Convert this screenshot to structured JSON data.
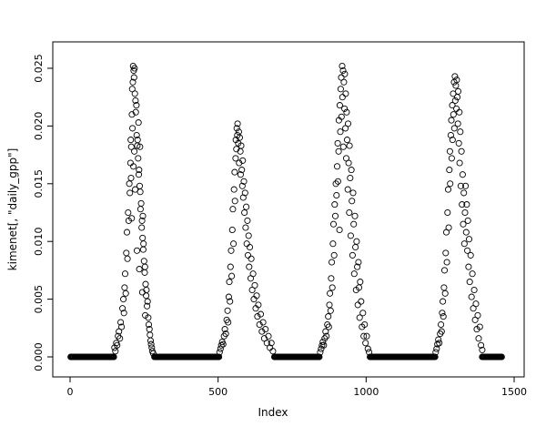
{
  "chart_data": {
    "type": "scatter",
    "title": "",
    "xlabel": "Index",
    "ylabel": "kimenet[, \"daily_gpp\"]",
    "xlim": [
      0,
      1500
    ],
    "ylim": [
      0,
      0.025
    ],
    "x_ticks": [
      0,
      500,
      1000,
      1500
    ],
    "y_ticks": [
      0.0,
      0.005,
      0.01,
      0.015,
      0.02,
      0.025
    ],
    "legend": "none",
    "grid": false,
    "marker": "open-circle",
    "marker_color": "#000000",
    "baseline_value": 0,
    "baseline_segments": [
      {
        "from": 2,
        "to": 148,
        "step": 2
      },
      {
        "from": 285,
        "to": 503,
        "step": 2
      },
      {
        "from": 690,
        "to": 843,
        "step": 2
      },
      {
        "from": 1013,
        "to": 1233,
        "step": 2
      },
      {
        "from": 1392,
        "to": 1458,
        "step": 2
      }
    ],
    "points": [
      [
        150,
        0.0008
      ],
      [
        153,
        0.0005
      ],
      [
        156,
        0.0012
      ],
      [
        159,
        0.001
      ],
      [
        162,
        0.0018
      ],
      [
        165,
        0.0022
      ],
      [
        168,
        0.0016
      ],
      [
        171,
        0.003
      ],
      [
        174,
        0.0026
      ],
      [
        177,
        0.0042
      ],
      [
        180,
        0.005
      ],
      [
        182,
        0.0038
      ],
      [
        184,
        0.006
      ],
      [
        186,
        0.0072
      ],
      [
        188,
        0.0055
      ],
      [
        190,
        0.009
      ],
      [
        192,
        0.0108
      ],
      [
        194,
        0.0085
      ],
      [
        196,
        0.0125
      ],
      [
        198,
        0.0118
      ],
      [
        200,
        0.015
      ],
      [
        202,
        0.0142
      ],
      [
        204,
        0.0168
      ],
      [
        205,
        0.0188
      ],
      [
        206,
        0.0155
      ],
      [
        207,
        0.0182
      ],
      [
        208,
        0.012
      ],
      [
        209,
        0.021
      ],
      [
        210,
        0.0232
      ],
      [
        211,
        0.0198
      ],
      [
        212,
        0.0238
      ],
      [
        213,
        0.0252
      ],
      [
        214,
        0.0165
      ],
      [
        215,
        0.0248
      ],
      [
        216,
        0.0242
      ],
      [
        217,
        0.0178
      ],
      [
        218,
        0.025
      ],
      [
        219,
        0.0228
      ],
      [
        220,
        0.0145
      ],
      [
        221,
        0.0222
      ],
      [
        222,
        0.0212
      ],
      [
        224,
        0.0218
      ],
      [
        225,
        0.0192
      ],
      [
        226,
        0.0092
      ],
      [
        227,
        0.0183
      ],
      [
        228,
        0.0188
      ],
      [
        230,
        0.0172
      ],
      [
        231,
        0.0203
      ],
      [
        232,
        0.0158
      ],
      [
        233,
        0.0162
      ],
      [
        234,
        0.0076
      ],
      [
        235,
        0.0148
      ],
      [
        236,
        0.0182
      ],
      [
        237,
        0.0143
      ],
      [
        238,
        0.0128
      ],
      [
        240,
        0.0133
      ],
      [
        242,
        0.0112
      ],
      [
        243,
        0.0118
      ],
      [
        244,
        0.0056
      ],
      [
        245,
        0.0103
      ],
      [
        246,
        0.0122
      ],
      [
        247,
        0.0093
      ],
      [
        248,
        0.0098
      ],
      [
        250,
        0.0083
      ],
      [
        252,
        0.0073
      ],
      [
        253,
        0.0078
      ],
      [
        254,
        0.0036
      ],
      [
        255,
        0.0063
      ],
      [
        257,
        0.0053
      ],
      [
        258,
        0.0058
      ],
      [
        260,
        0.0044
      ],
      [
        262,
        0.0048
      ],
      [
        264,
        0.0034
      ],
      [
        266,
        0.0028
      ],
      [
        268,
        0.0024
      ],
      [
        270,
        0.0019
      ],
      [
        272,
        0.0014
      ],
      [
        274,
        0.0011
      ],
      [
        276,
        0.0008
      ],
      [
        278,
        0.0005
      ],
      [
        281,
        0.0003
      ],
      [
        505,
        0.0004
      ],
      [
        508,
        0.0007
      ],
      [
        511,
        0.001
      ],
      [
        514,
        0.0013
      ],
      [
        517,
        0.0011
      ],
      [
        520,
        0.0018
      ],
      [
        523,
        0.0024
      ],
      [
        526,
        0.002
      ],
      [
        529,
        0.0032
      ],
      [
        532,
        0.004
      ],
      [
        534,
        0.003
      ],
      [
        536,
        0.0052
      ],
      [
        538,
        0.0065
      ],
      [
        540,
        0.0048
      ],
      [
        542,
        0.0078
      ],
      [
        544,
        0.0092
      ],
      [
        546,
        0.007
      ],
      [
        548,
        0.011
      ],
      [
        550,
        0.0128
      ],
      [
        552,
        0.0098
      ],
      [
        554,
        0.0145
      ],
      [
        556,
        0.016
      ],
      [
        557,
        0.0135
      ],
      [
        559,
        0.0172
      ],
      [
        560,
        0.0188
      ],
      [
        562,
        0.018
      ],
      [
        563,
        0.0198
      ],
      [
        565,
        0.0192
      ],
      [
        566,
        0.0202
      ],
      [
        568,
        0.0185
      ],
      [
        570,
        0.0195
      ],
      [
        571,
        0.0168
      ],
      [
        573,
        0.019
      ],
      [
        575,
        0.0178
      ],
      [
        576,
        0.0158
      ],
      [
        578,
        0.0183
      ],
      [
        580,
        0.0162
      ],
      [
        582,
        0.0148
      ],
      [
        583,
        0.017
      ],
      [
        585,
        0.0138
      ],
      [
        587,
        0.0152
      ],
      [
        589,
        0.0125
      ],
      [
        591,
        0.0142
      ],
      [
        593,
        0.0112
      ],
      [
        595,
        0.013
      ],
      [
        597,
        0.0098
      ],
      [
        599,
        0.0118
      ],
      [
        601,
        0.0088
      ],
      [
        603,
        0.0105
      ],
      [
        605,
        0.0078
      ],
      [
        607,
        0.0095
      ],
      [
        610,
        0.0068
      ],
      [
        612,
        0.0085
      ],
      [
        615,
        0.0058
      ],
      [
        618,
        0.0072
      ],
      [
        621,
        0.005
      ],
      [
        624,
        0.0062
      ],
      [
        627,
        0.0042
      ],
      [
        630,
        0.0053
      ],
      [
        633,
        0.0035
      ],
      [
        636,
        0.0045
      ],
      [
        640,
        0.0028
      ],
      [
        644,
        0.0037
      ],
      [
        648,
        0.0022
      ],
      [
        652,
        0.003
      ],
      [
        656,
        0.0016
      ],
      [
        660,
        0.0024
      ],
      [
        665,
        0.0012
      ],
      [
        670,
        0.0018
      ],
      [
        675,
        0.0008
      ],
      [
        680,
        0.0012
      ],
      [
        685,
        0.0005
      ],
      [
        845,
        0.0004
      ],
      [
        848,
        0.0007
      ],
      [
        851,
        0.001
      ],
      [
        854,
        0.0013
      ],
      [
        857,
        0.001
      ],
      [
        860,
        0.0016
      ],
      [
        863,
        0.0022
      ],
      [
        866,
        0.0018
      ],
      [
        869,
        0.0028
      ],
      [
        872,
        0.0035
      ],
      [
        874,
        0.0026
      ],
      [
        876,
        0.0045
      ],
      [
        878,
        0.0055
      ],
      [
        880,
        0.004
      ],
      [
        882,
        0.0068
      ],
      [
        884,
        0.0082
      ],
      [
        886,
        0.006
      ],
      [
        888,
        0.0098
      ],
      [
        890,
        0.0115
      ],
      [
        892,
        0.0088
      ],
      [
        894,
        0.0132
      ],
      [
        896,
        0.0122
      ],
      [
        898,
        0.015
      ],
      [
        900,
        0.014
      ],
      [
        902,
        0.0165
      ],
      [
        904,
        0.0185
      ],
      [
        905,
        0.0152
      ],
      [
        907,
        0.0178
      ],
      [
        908,
        0.0205
      ],
      [
        910,
        0.011
      ],
      [
        911,
        0.0218
      ],
      [
        913,
        0.0195
      ],
      [
        914,
        0.0232
      ],
      [
        916,
        0.0242
      ],
      [
        917,
        0.0208
      ],
      [
        919,
        0.0252
      ],
      [
        920,
        0.0225
      ],
      [
        922,
        0.0248
      ],
      [
        923,
        0.0182
      ],
      [
        925,
        0.0238
      ],
      [
        927,
        0.0215
      ],
      [
        928,
        0.0245
      ],
      [
        930,
        0.0198
      ],
      [
        931,
        0.0228
      ],
      [
        933,
        0.0172
      ],
      [
        934,
        0.0212
      ],
      [
        936,
        0.0188
      ],
      [
        938,
        0.0145
      ],
      [
        939,
        0.0202
      ],
      [
        941,
        0.0168
      ],
      [
        943,
        0.0125
      ],
      [
        944,
        0.0183
      ],
      [
        946,
        0.0155
      ],
      [
        948,
        0.0105
      ],
      [
        950,
        0.0162
      ],
      [
        952,
        0.0135
      ],
      [
        954,
        0.0088
      ],
      [
        956,
        0.0142
      ],
      [
        958,
        0.0115
      ],
      [
        960,
        0.0072
      ],
      [
        962,
        0.0122
      ],
      [
        964,
        0.0095
      ],
      [
        966,
        0.0058
      ],
      [
        968,
        0.01
      ],
      [
        970,
        0.0078
      ],
      [
        972,
        0.0045
      ],
      [
        974,
        0.0082
      ],
      [
        976,
        0.006
      ],
      [
        978,
        0.0034
      ],
      [
        980,
        0.0065
      ],
      [
        983,
        0.0048
      ],
      [
        986,
        0.0026
      ],
      [
        989,
        0.0038
      ],
      [
        992,
        0.0018
      ],
      [
        995,
        0.0028
      ],
      [
        998,
        0.0012
      ],
      [
        1002,
        0.0018
      ],
      [
        1006,
        0.0007
      ],
      [
        1010,
        0.0004
      ],
      [
        1235,
        0.0004
      ],
      [
        1238,
        0.0007
      ],
      [
        1241,
        0.0011
      ],
      [
        1244,
        0.0015
      ],
      [
        1247,
        0.0012
      ],
      [
        1250,
        0.002
      ],
      [
        1253,
        0.0028
      ],
      [
        1255,
        0.0022
      ],
      [
        1257,
        0.0038
      ],
      [
        1259,
        0.0048
      ],
      [
        1261,
        0.0035
      ],
      [
        1263,
        0.006
      ],
      [
        1265,
        0.0075
      ],
      [
        1267,
        0.0055
      ],
      [
        1269,
        0.009
      ],
      [
        1271,
        0.0108
      ],
      [
        1273,
        0.0082
      ],
      [
        1275,
        0.0125
      ],
      [
        1277,
        0.0145
      ],
      [
        1279,
        0.0112
      ],
      [
        1281,
        0.0162
      ],
      [
        1283,
        0.0178
      ],
      [
        1284,
        0.015
      ],
      [
        1286,
        0.0192
      ],
      [
        1288,
        0.0205
      ],
      [
        1289,
        0.0172
      ],
      [
        1291,
        0.0218
      ],
      [
        1292,
        0.0188
      ],
      [
        1294,
        0.0228
      ],
      [
        1295,
        0.021
      ],
      [
        1297,
        0.0238
      ],
      [
        1298,
        0.0198
      ],
      [
        1300,
        0.0243
      ],
      [
        1301,
        0.0222
      ],
      [
        1303,
        0.0235
      ],
      [
        1305,
        0.0215
      ],
      [
        1306,
        0.024
      ],
      [
        1308,
        0.0225
      ],
      [
        1310,
        0.0202
      ],
      [
        1311,
        0.023
      ],
      [
        1313,
        0.0185
      ],
      [
        1315,
        0.0212
      ],
      [
        1316,
        0.0168
      ],
      [
        1318,
        0.0195
      ],
      [
        1320,
        0.0148
      ],
      [
        1322,
        0.0178
      ],
      [
        1324,
        0.0132
      ],
      [
        1326,
        0.0158
      ],
      [
        1328,
        0.0115
      ],
      [
        1330,
        0.0142
      ],
      [
        1332,
        0.0098
      ],
      [
        1334,
        0.0125
      ],
      [
        1336,
        0.0148
      ],
      [
        1338,
        0.0108
      ],
      [
        1340,
        0.0132
      ],
      [
        1342,
        0.0092
      ],
      [
        1344,
        0.0118
      ],
      [
        1346,
        0.0078
      ],
      [
        1348,
        0.0102
      ],
      [
        1350,
        0.0065
      ],
      [
        1353,
        0.0088
      ],
      [
        1356,
        0.0052
      ],
      [
        1359,
        0.0072
      ],
      [
        1362,
        0.0042
      ],
      [
        1365,
        0.0058
      ],
      [
        1368,
        0.0032
      ],
      [
        1371,
        0.0046
      ],
      [
        1374,
        0.0024
      ],
      [
        1377,
        0.0036
      ],
      [
        1380,
        0.0016
      ],
      [
        1384,
        0.0026
      ],
      [
        1388,
        0.001
      ],
      [
        1392,
        0.0006
      ]
    ]
  }
}
